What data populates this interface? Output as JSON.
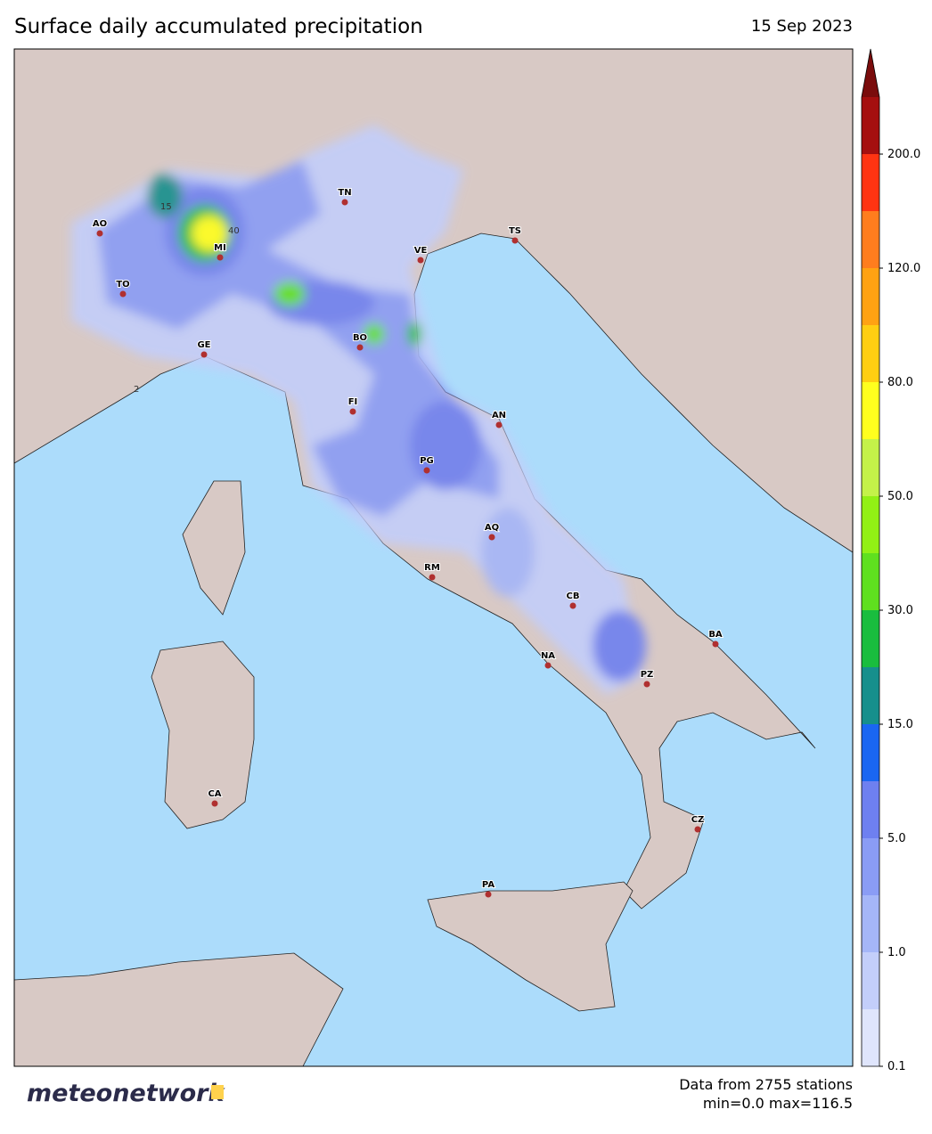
{
  "header": {
    "title": "Surface daily accumulated precipitation",
    "date": "15 Sep 2023"
  },
  "cities": [
    "AO",
    "MI",
    "TO",
    "GE",
    "TN",
    "VE",
    "TS",
    "BO",
    "FI",
    "AN",
    "PG",
    "AQ",
    "RM",
    "CB",
    "BA",
    "NA",
    "PZ",
    "CA",
    "CZ",
    "PA"
  ],
  "contour_labels": [
    "2",
    "15",
    "40"
  ],
  "colorbar": {
    "ticks": [
      "0.1",
      "1.0",
      "5.0",
      "15.0",
      "30.0",
      "50.0",
      "80.0",
      "120.0",
      "200.0"
    ],
    "colors": [
      "#dfe5fc",
      "#c3cefa",
      "#a5b6f8",
      "#8a9cf5",
      "#6e80f0",
      "#1a66f2",
      "#168f8c",
      "#19bd3e",
      "#5fe01f",
      "#92f015",
      "#c4f249",
      "#ffff1e",
      "#ffce12",
      "#ffa213",
      "#ff7d1e",
      "#ff3412",
      "#a50f0f"
    ],
    "extend_color": "#7a0c0c"
  },
  "footer": {
    "logo": "meteonetwork",
    "stations": "Data from 2755 stations",
    "range": "min=0.0 max=116.5"
  }
}
